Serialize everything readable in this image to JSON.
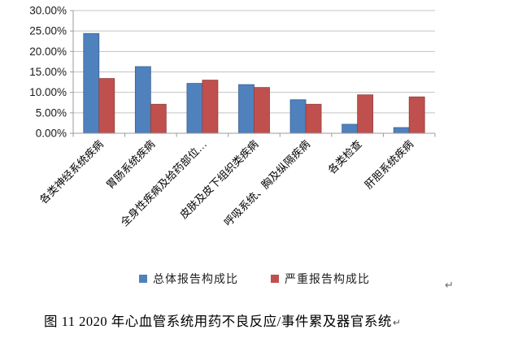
{
  "chart_data": {
    "type": "bar",
    "title": "图 11  2020 年心血管系统用药不良反应/事件累及器官系统",
    "xlabel": "",
    "ylabel": "",
    "categories": [
      "各类神经系统疾病",
      "胃肠系统疾病",
      "全身性疾病及给药部位…",
      "皮肤及皮下组织类疾病",
      "呼吸系统、胸及纵隔疾病",
      "各类检查",
      "肝胆系统疾病"
    ],
    "series": [
      {
        "name": "总体报告构成比",
        "color": "#4F81BD",
        "border_color": "#3A6190",
        "values": [
          24.4,
          16.3,
          12.2,
          11.9,
          8.2,
          2.2,
          1.4
        ]
      },
      {
        "name": "严重报告构成比",
        "color": "#C0504D",
        "border_color": "#92403E",
        "values": [
          13.4,
          7.1,
          13.0,
          11.2,
          7.1,
          9.4,
          8.9
        ]
      }
    ],
    "ylim": [
      0,
      30
    ],
    "ytick_step": 5,
    "ytick_labels": [
      "0.00%",
      "5.00%",
      "10.00%",
      "15.00%",
      "20.00%",
      "25.00%",
      "30.00%"
    ],
    "grid": true,
    "legend_position": "bottom"
  },
  "caption": {
    "text": "图 11  2020 年心血管系统用药不良反应/事件累及器官系统",
    "return_mark": "↵"
  },
  "floating_return_mark": "↵",
  "colors": {
    "grid": "#C3C3C3",
    "axis": "#9B9B9B",
    "tick_text": "#1a1a1a",
    "category_text": "#000000"
  }
}
